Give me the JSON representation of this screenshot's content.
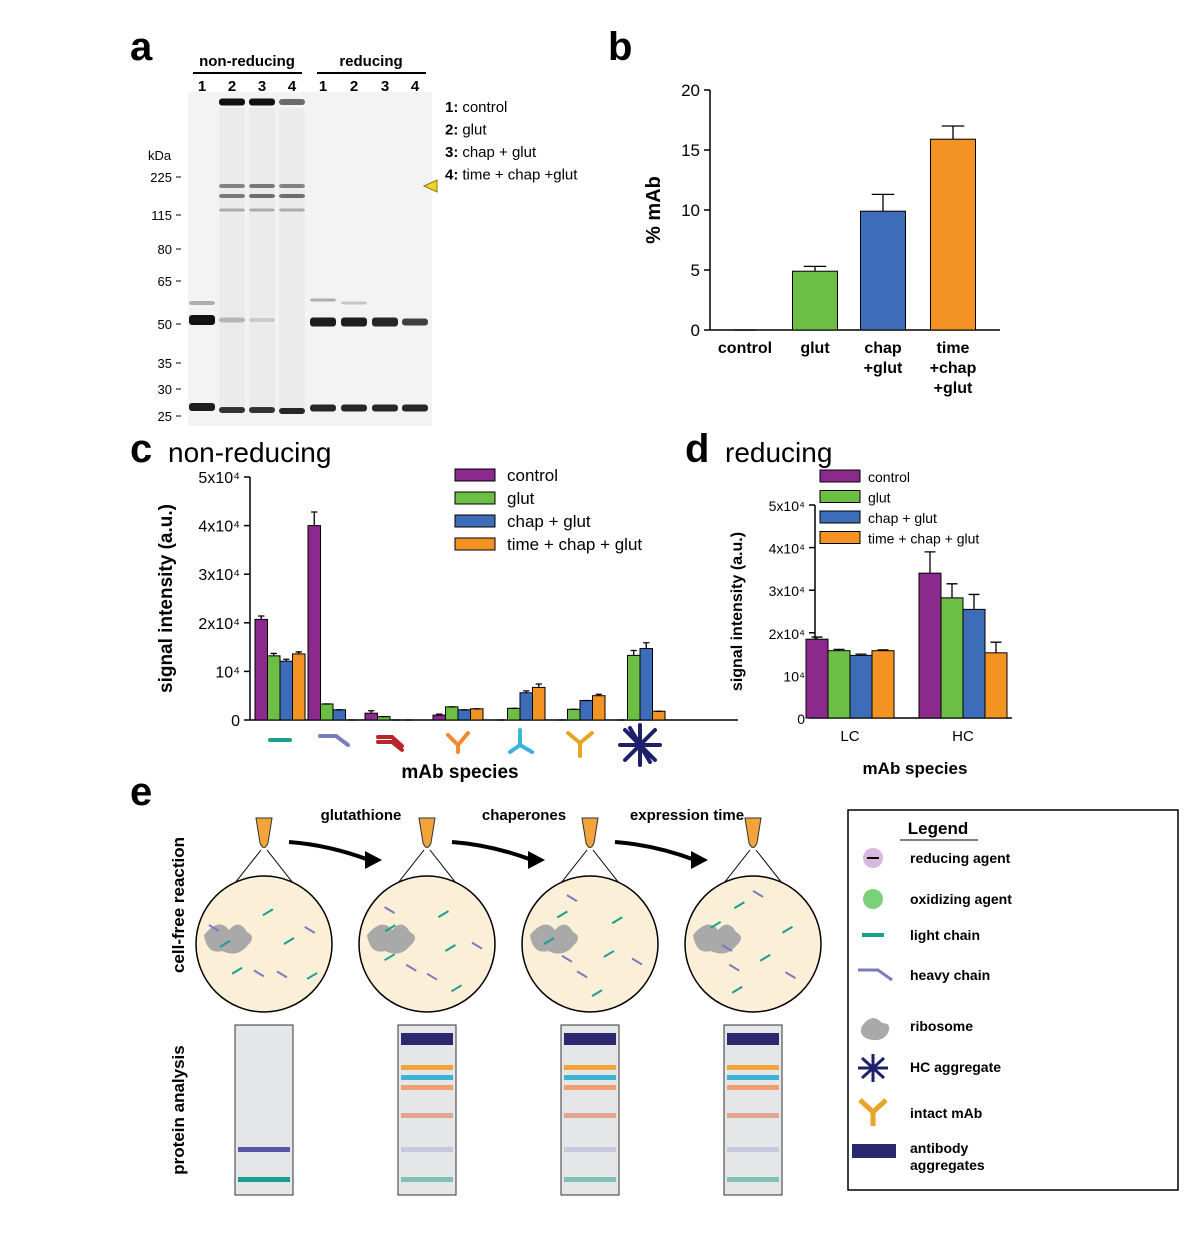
{
  "panel_labels": [
    "a",
    "b",
    "c",
    "d",
    "e"
  ],
  "panel_a": {
    "headers": [
      "non-reducing",
      "reducing"
    ],
    "lanes": [
      "1",
      "2",
      "3",
      "4",
      "1",
      "2",
      "3",
      "4"
    ],
    "unit": "kDa",
    "markers": [
      225,
      115,
      80,
      65,
      50,
      35,
      30,
      25
    ],
    "legend": [
      {
        "key": "1:",
        "label": "control"
      },
      {
        "key": "2:",
        "label": "glut"
      },
      {
        "key": "3:",
        "label": "chap + glut"
      },
      {
        "key": "4:",
        "label": "time + chap +glut"
      }
    ]
  },
  "chart_data": [
    {
      "type": "bar",
      "ylabel": "% mAb",
      "categories": [
        "control",
        "glut",
        "chap +glut",
        "time +chap +glut"
      ],
      "series": [
        {
          "values": [
            0,
            4.9,
            9.9,
            15.9
          ],
          "errors": [
            0,
            0.4,
            1.4,
            1.1
          ],
          "colors": [
            "#ffffff",
            "#6cbf44",
            "#3d6cb9",
            "#f39324"
          ]
        }
      ],
      "ylim": [
        0,
        20
      ],
      "yticks": [
        0,
        5,
        10,
        15,
        20
      ]
    },
    {
      "type": "bar",
      "title": "non-reducing",
      "ylabel": "signal intensity (a.u.)",
      "xlabel": "mAb species",
      "categories": [
        null,
        null,
        null,
        null,
        null,
        null,
        null
      ],
      "series": [
        {
          "name": "control",
          "color": "#8b2a8c",
          "values": [
            20700,
            40000,
            1400,
            1000,
            0,
            0,
            0
          ],
          "errors": [
            700,
            2800,
            500,
            200,
            0,
            0,
            0
          ]
        },
        {
          "name": "glut",
          "color": "#6cbf44",
          "values": [
            13200,
            3300,
            700,
            2700,
            2400,
            2200,
            13300
          ],
          "errors": [
            500,
            0,
            0,
            0,
            0,
            0,
            1000
          ]
        },
        {
          "name": "chap + glut",
          "color": "#3d6cb9",
          "values": [
            12100,
            2100,
            0,
            2100,
            5600,
            4000,
            14700
          ],
          "errors": [
            400,
            0,
            0,
            0,
            400,
            0,
            1200
          ]
        },
        {
          "name": "time + chap + glut",
          "color": "#f39324",
          "values": [
            13600,
            0,
            0,
            2300,
            6700,
            5000,
            1800
          ],
          "errors": [
            400,
            0,
            0,
            0,
            700,
            300,
            0
          ]
        }
      ],
      "ylim": [
        0,
        50000
      ],
      "yticks": [
        0,
        {
          "value": 10000,
          "label": "10⁴"
        },
        {
          "value": 20000,
          "label": "2x10⁴"
        },
        {
          "value": 30000,
          "label": "3x10⁴"
        },
        {
          "value": 40000,
          "label": "4x10⁴"
        },
        {
          "value": 50000,
          "label": "5x10⁴"
        }
      ]
    },
    {
      "type": "bar",
      "title": "reducing",
      "ylabel": "signal intensity (a.u.)",
      "xlabel": "mAb species",
      "categories": [
        "LC",
        "HC"
      ],
      "series": [
        {
          "name": "control",
          "color": "#8b2a8c",
          "values": [
            18500,
            34000
          ],
          "errors": [
            500,
            5000
          ]
        },
        {
          "name": "glut",
          "color": "#6cbf44",
          "values": [
            15800,
            28200
          ],
          "errors": [
            300,
            3300
          ]
        },
        {
          "name": "chap + glut",
          "color": "#3d6cb9",
          "values": [
            14700,
            25500
          ],
          "errors": [
            300,
            3500
          ]
        },
        {
          "name": "time + chap + glut",
          "color": "#f39324",
          "values": [
            15800,
            15300
          ],
          "errors": [
            200,
            2500
          ]
        }
      ],
      "ylim": [
        0,
        50000
      ],
      "yticks": [
        0,
        {
          "value": 10000,
          "label": "10⁴"
        },
        {
          "value": 20000,
          "label": "2x10⁴"
        },
        {
          "value": 30000,
          "label": "3x10⁴"
        },
        {
          "value": 40000,
          "label": "4x10⁴"
        },
        {
          "value": 50000,
          "label": "5x10⁴"
        }
      ]
    }
  ],
  "panel_e": {
    "arrows": [
      "glutathione",
      "chaperones",
      "expression time"
    ],
    "row_labels": [
      "cell-free reaction",
      "protein analysis"
    ],
    "legend": {
      "title": "Legend",
      "items": [
        "reducing agent",
        "oxidizing agent",
        "light chain",
        "heavy chain",
        "ribosome",
        "HC aggregate",
        "intact mAb",
        "antibody aggregates"
      ]
    }
  }
}
